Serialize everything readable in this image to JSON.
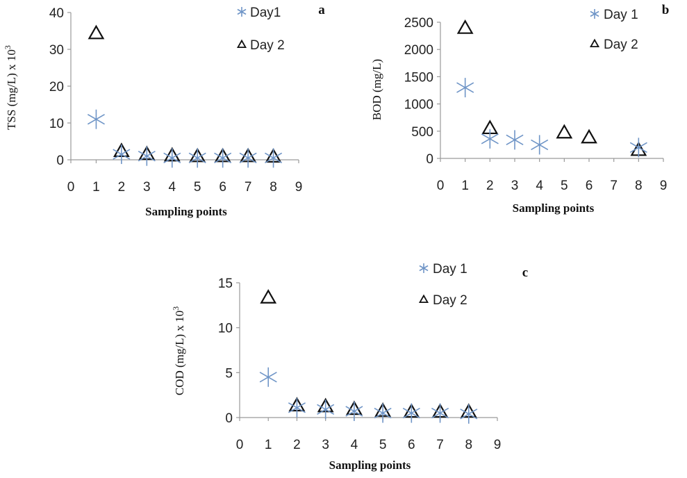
{
  "chart_data": [
    {
      "type": "scatter",
      "panel_label": "a",
      "xlabel": "Sampling points",
      "ylabel": "TSS  (mg/L)    x 10",
      "ylabel_sup": "3",
      "xlim": [
        0,
        9
      ],
      "ylim": [
        0,
        40
      ],
      "xticks": [
        "0",
        "1",
        "2",
        "3",
        "4",
        "5",
        "6",
        "7",
        "8",
        "9"
      ],
      "yticks": [
        "0",
        "10",
        "20",
        "30",
        "40"
      ],
      "legend_position": "top-right",
      "series": [
        {
          "name": "Day1",
          "marker": "asterisk",
          "color": "#6f95c7",
          "x": [
            1,
            2,
            3,
            4,
            5,
            6,
            7,
            8
          ],
          "y": [
            11,
            1.5,
            1,
            0.5,
            0.5,
            0.5,
            0.5,
            0.5
          ]
        },
        {
          "name": "Day 2",
          "marker": "triangle",
          "color": "#111111",
          "x": [
            1,
            2,
            3,
            4,
            5,
            6,
            7,
            8
          ],
          "y": [
            34,
            2,
            1.2,
            0.8,
            0.6,
            0.6,
            0.6,
            0.5
          ]
        }
      ]
    },
    {
      "type": "scatter",
      "panel_label": "b",
      "xlabel": "Sampling points",
      "ylabel": "BOD  (mg/L)",
      "ylabel_sup": "",
      "xlim": [
        0,
        9
      ],
      "ylim": [
        0,
        2500
      ],
      "xticks": [
        "0",
        "1",
        "2",
        "3",
        "4",
        "5",
        "6",
        "7",
        "8",
        "9"
      ],
      "yticks": [
        "0",
        "500",
        "1000",
        "1500",
        "2000",
        "2500"
      ],
      "legend_position": "top-right",
      "series": [
        {
          "name": "Day 1",
          "marker": "asterisk",
          "color": "#6f95c7",
          "x": [
            1,
            2,
            3,
            4,
            8
          ],
          "y": [
            1300,
            360,
            340,
            250,
            200
          ]
        },
        {
          "name": "Day 2",
          "marker": "triangle",
          "color": "#111111",
          "x": [
            1,
            2,
            5,
            6,
            8
          ],
          "y": [
            2370,
            530,
            450,
            360,
            130
          ]
        }
      ]
    },
    {
      "type": "scatter",
      "panel_label": "c",
      "xlabel": "Sampling points",
      "ylabel": "COD  (mg/L)  x 10",
      "ylabel_sup": "3",
      "xlim": [
        0,
        9
      ],
      "ylim": [
        0,
        15
      ],
      "xticks": [
        "0",
        "1",
        "2",
        "3",
        "4",
        "5",
        "6",
        "7",
        "8",
        "9"
      ],
      "yticks": [
        "0",
        "5",
        "10",
        "15"
      ],
      "legend_position": "top-right",
      "series": [
        {
          "name": "Day 1",
          "marker": "asterisk",
          "color": "#6f95c7",
          "x": [
            1,
            2,
            3,
            4,
            5,
            6,
            7,
            8
          ],
          "y": [
            4.5,
            1.1,
            0.9,
            0.7,
            0.5,
            0.5,
            0.5,
            0.4
          ]
        },
        {
          "name": "Day 2",
          "marker": "triangle",
          "color": "#111111",
          "x": [
            1,
            2,
            3,
            4,
            5,
            6,
            7,
            8
          ],
          "y": [
            13.2,
            1.2,
            1.1,
            0.8,
            0.6,
            0.5,
            0.5,
            0.5
          ]
        }
      ]
    }
  ]
}
